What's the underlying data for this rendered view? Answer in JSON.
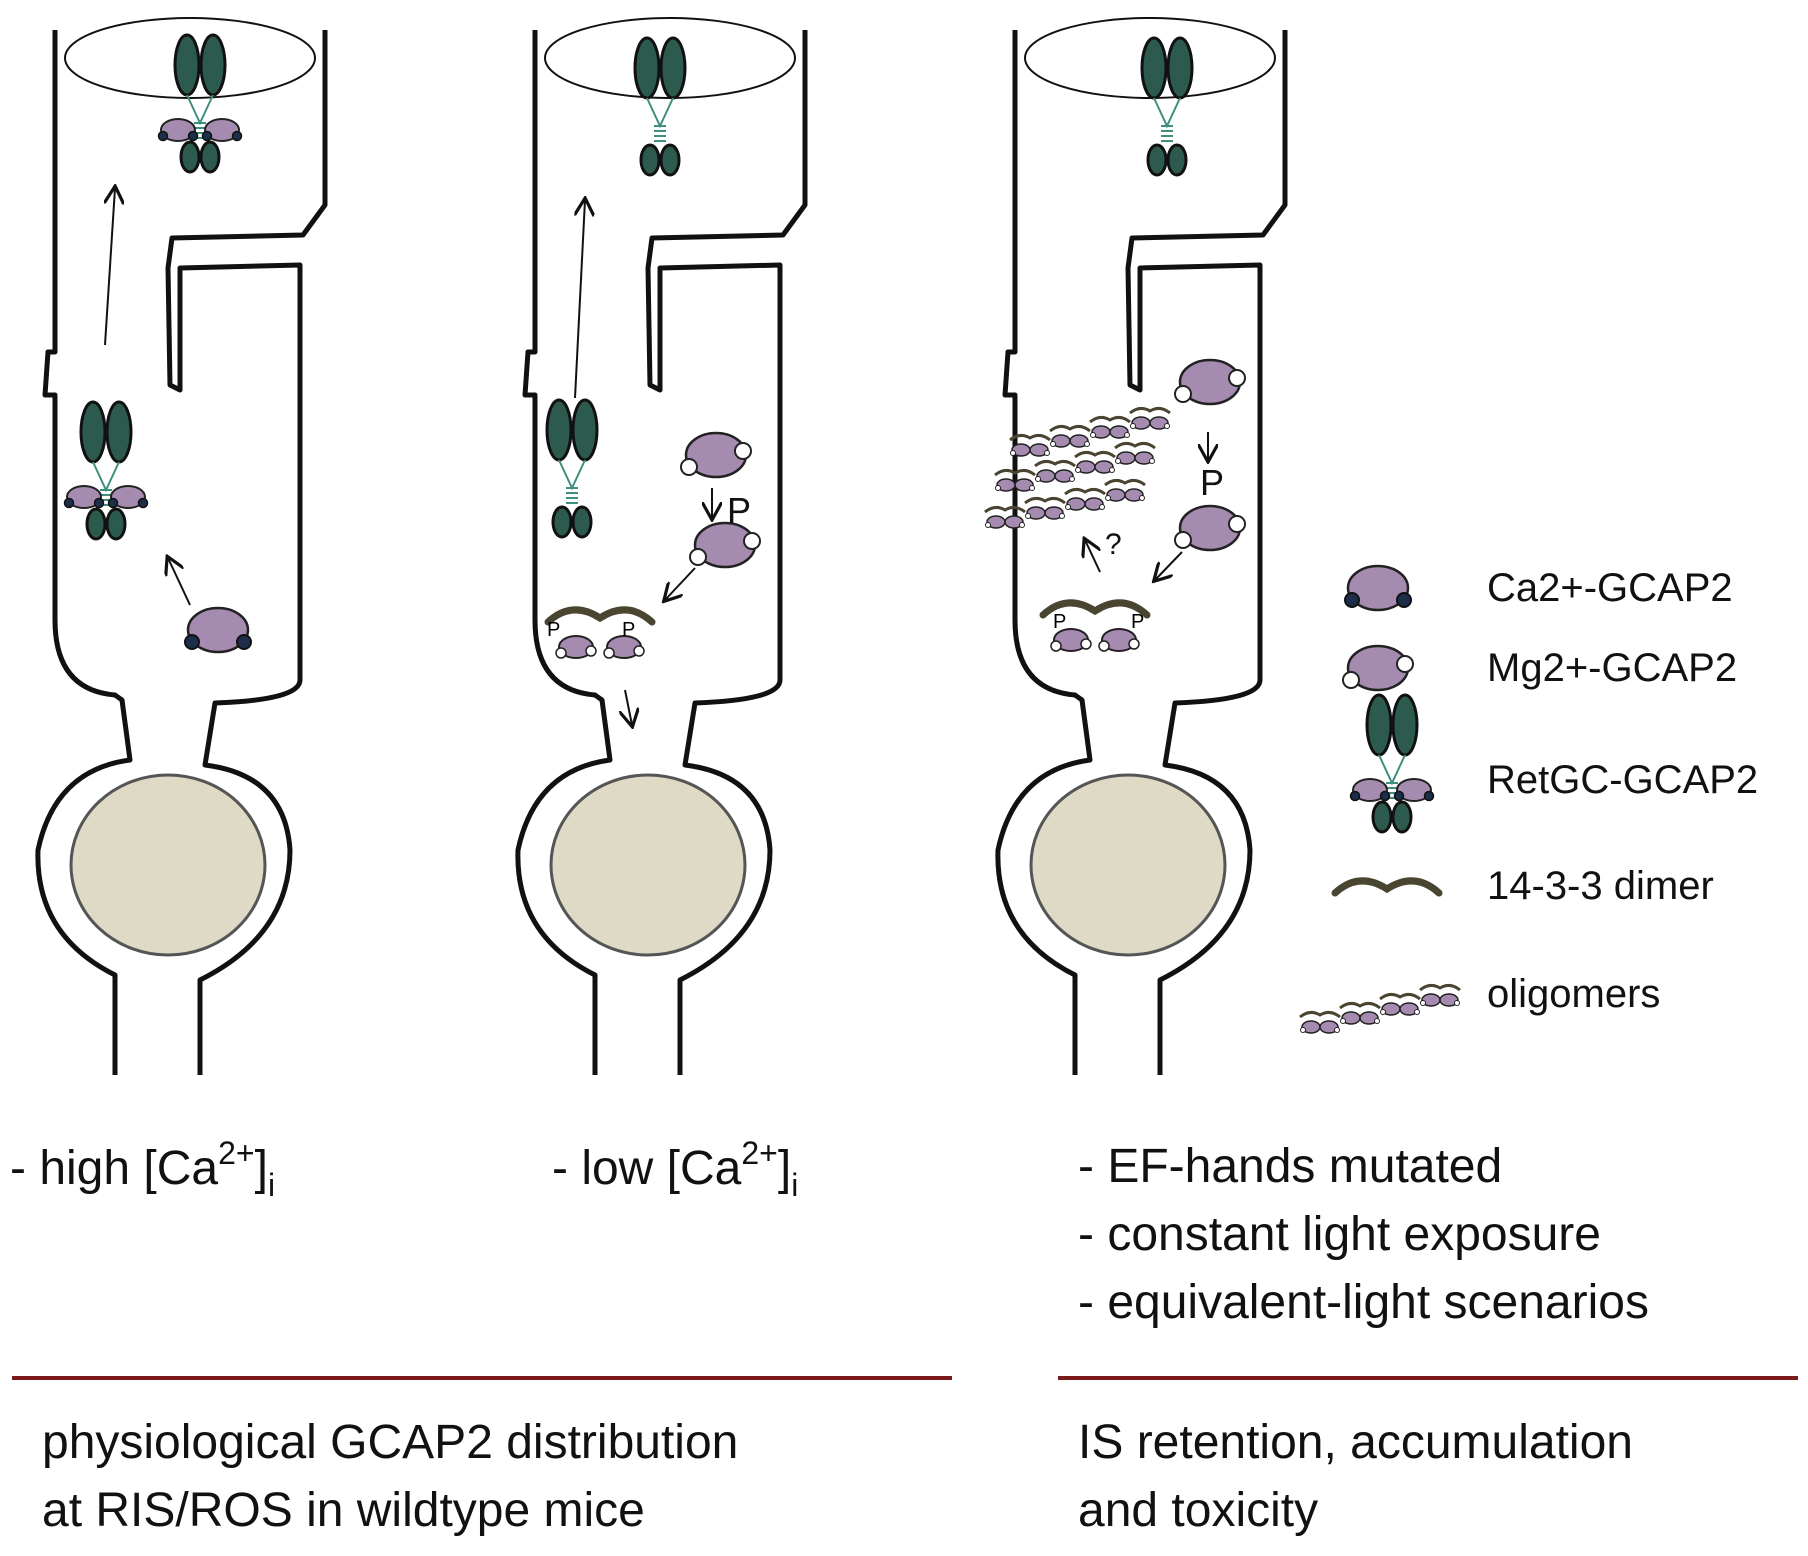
{
  "panels": [
    {
      "condition": {
        "prefix": "- high [Ca",
        "sup": "2+",
        "suffix": "]",
        "sub": "i"
      }
    },
    {
      "condition": {
        "prefix": "- low [Ca",
        "sup": "2+",
        "suffix": "]",
        "sub": "i"
      }
    },
    {
      "condition_lines": [
        "- EF-hands mutated",
        "- constant light exposure",
        "- equivalent-light scenarios"
      ],
      "question_mark": "?"
    }
  ],
  "phospho_label": "P",
  "small_phospho_label": "P",
  "legend": {
    "ca_gcap2": "Ca2+-GCAP2",
    "mg_gcap2": "Mg2+-GCAP2",
    "retgc_gcap2": "RetGC-GCAP2",
    "dimer_1433": "14-3-3 dimer",
    "oligomers": "oligomers"
  },
  "summary": {
    "left": [
      "physiological GCAP2 distribution",
      "at RIS/ROS in wildtype mice"
    ],
    "right": [
      "IS retention, accumulation",
      "and toxicity"
    ]
  },
  "colors": {
    "gcap_fill": "#a58bb0",
    "retgc_fill": "#2d5a4e",
    "ca_dot": "#1d2e4a",
    "nucleus_fill": "#dedac5",
    "dimer": "#4a4530",
    "divider": "#7a1a1a"
  }
}
